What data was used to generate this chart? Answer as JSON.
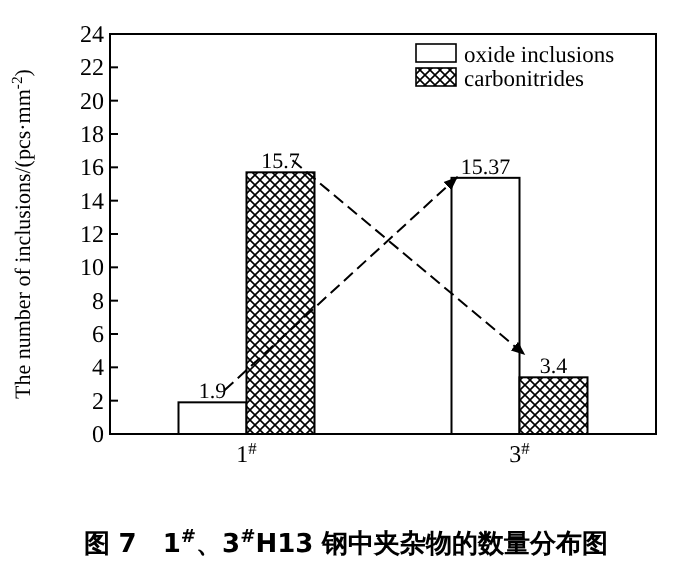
{
  "chart_data": {
    "type": "bar",
    "ylabel": "The number of inclusions/(pcs·mm$^{-2}$)",
    "categories": [
      "1$^{#}$",
      "3$^{#}$"
    ],
    "series": [
      {
        "name": "oxide inclusions",
        "color": "#ffffff",
        "values": [
          1.9,
          15.37
        ]
      },
      {
        "name": "carbonitrides",
        "color": "#000000",
        "values": [
          15.7,
          3.4
        ]
      }
    ],
    "ylim": [
      0,
      24
    ],
    "yticks": [
      0,
      2,
      4,
      6,
      8,
      10,
      12,
      14,
      16,
      18,
      20,
      22,
      24
    ],
    "data_labels": true,
    "legend": "top right",
    "grid": false,
    "annotations": [
      "图 7　1$^{#}$、3$^{#}$H13 钢中夹杂物的数量分布图"
    ]
  }
}
